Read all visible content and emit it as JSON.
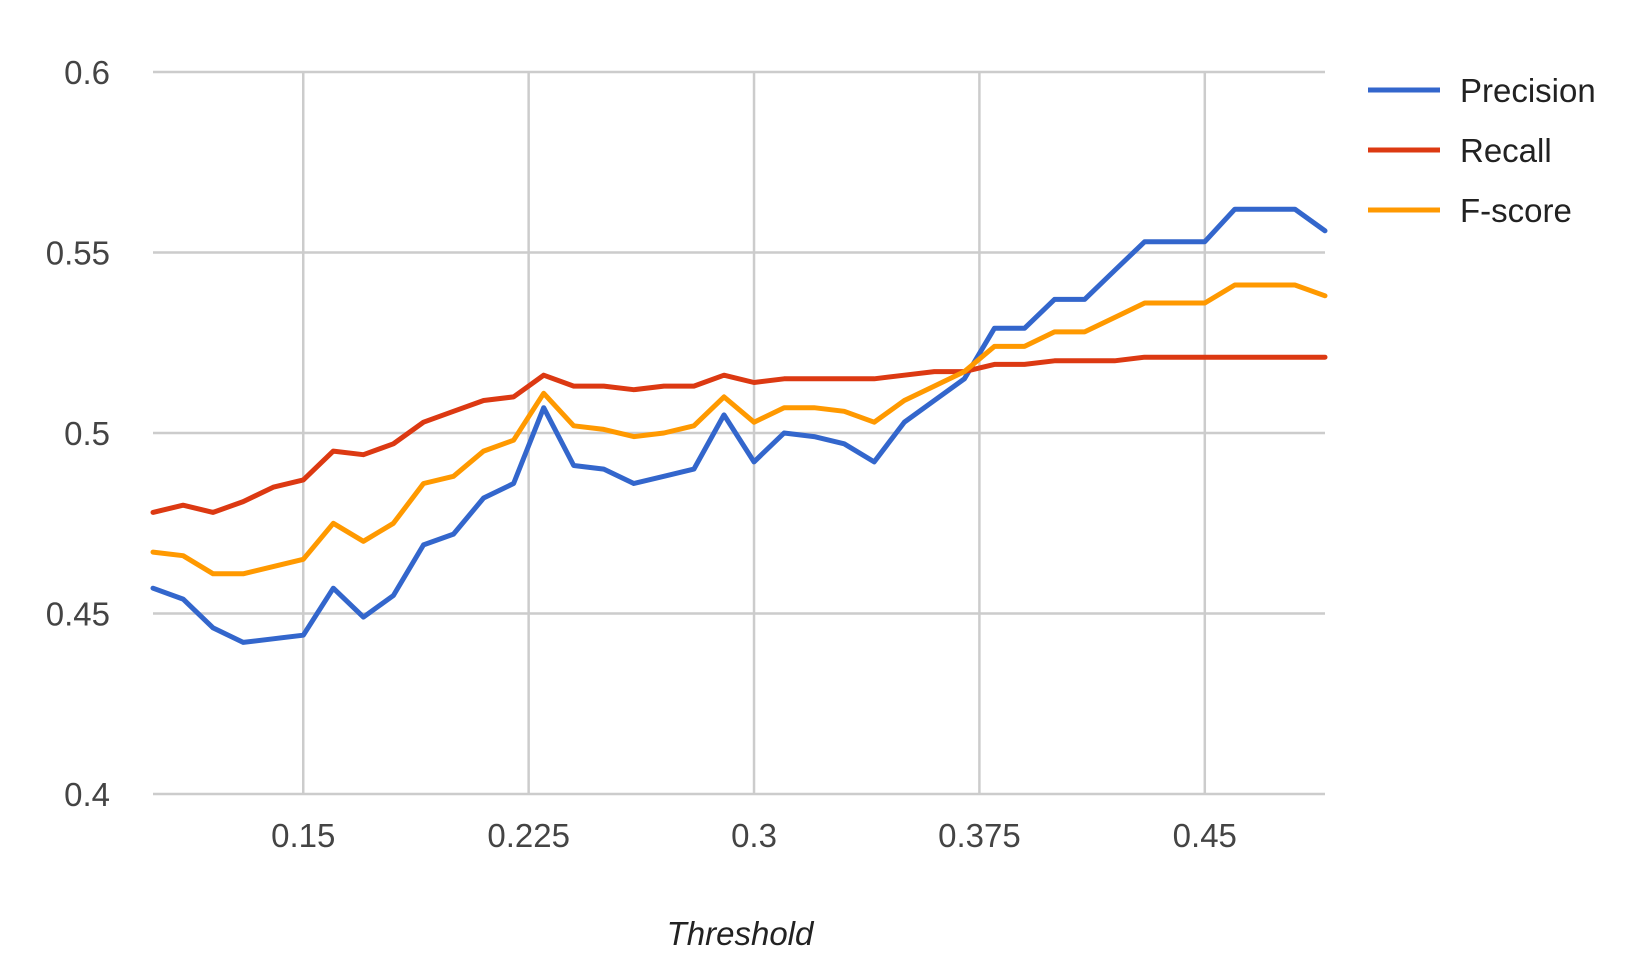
{
  "chart_data": {
    "type": "line",
    "title": "",
    "xlabel": "Threshold",
    "ylabel": "",
    "xlim": [
      0.1,
      0.49
    ],
    "ylim": [
      0.4,
      0.6
    ],
    "x_ticks": [
      0.15,
      0.225,
      0.3,
      0.375,
      0.45
    ],
    "x_tick_labels": [
      "0.15",
      "0.225",
      "0.3",
      "0.375",
      "0.45"
    ],
    "y_ticks": [
      0.4,
      0.45,
      0.5,
      0.55,
      0.6
    ],
    "y_tick_labels": [
      "0.4",
      "0.45",
      "0.5",
      "0.55",
      "0.6"
    ],
    "grid": true,
    "legend_position": "top-right",
    "x": [
      0.1,
      0.11,
      0.12,
      0.13,
      0.14,
      0.15,
      0.16,
      0.17,
      0.18,
      0.19,
      0.2,
      0.21,
      0.22,
      0.23,
      0.24,
      0.25,
      0.26,
      0.27,
      0.28,
      0.29,
      0.3,
      0.31,
      0.32,
      0.33,
      0.34,
      0.35,
      0.36,
      0.37,
      0.38,
      0.39,
      0.4,
      0.41,
      0.42,
      0.43,
      0.44,
      0.45,
      0.46,
      0.47,
      0.48,
      0.49
    ],
    "series": [
      {
        "name": "Precision",
        "color": "#3366cc",
        "values": [
          0.457,
          0.454,
          0.446,
          0.442,
          0.443,
          0.444,
          0.457,
          0.449,
          0.455,
          0.469,
          0.472,
          0.482,
          0.486,
          0.507,
          0.491,
          0.49,
          0.486,
          0.488,
          0.49,
          0.505,
          0.492,
          0.5,
          0.499,
          0.497,
          0.492,
          0.503,
          0.509,
          0.515,
          0.529,
          0.529,
          0.537,
          0.537,
          0.545,
          0.553,
          0.553,
          0.553,
          0.562,
          0.562,
          0.562,
          0.556
        ]
      },
      {
        "name": "Recall",
        "color": "#dc3912",
        "values": [
          0.478,
          0.48,
          0.478,
          0.481,
          0.485,
          0.487,
          0.495,
          0.494,
          0.497,
          0.503,
          0.506,
          0.509,
          0.51,
          0.516,
          0.513,
          0.513,
          0.512,
          0.513,
          0.513,
          0.516,
          0.514,
          0.515,
          0.515,
          0.515,
          0.515,
          0.516,
          0.517,
          0.517,
          0.519,
          0.519,
          0.52,
          0.52,
          0.52,
          0.521,
          0.521,
          0.521,
          0.521,
          0.521,
          0.521,
          0.521
        ]
      },
      {
        "name": "F-score",
        "color": "#ff9900",
        "values": [
          0.467,
          0.466,
          0.461,
          0.461,
          0.463,
          0.465,
          0.475,
          0.47,
          0.475,
          0.486,
          0.488,
          0.495,
          0.498,
          0.511,
          0.502,
          0.501,
          0.499,
          0.5,
          0.502,
          0.51,
          0.503,
          0.507,
          0.507,
          0.506,
          0.503,
          0.509,
          0.513,
          0.517,
          0.524,
          0.524,
          0.528,
          0.528,
          0.532,
          0.536,
          0.536,
          0.536,
          0.541,
          0.541,
          0.541,
          0.538
        ]
      }
    ]
  }
}
